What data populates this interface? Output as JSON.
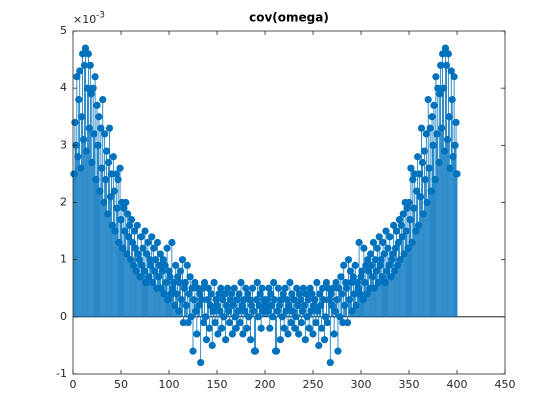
{
  "chart_data": {
    "type": "stem",
    "title": "cov(omega)",
    "color": "#0072bd",
    "y_exponent": {
      "base": "×10",
      "power": "-3"
    },
    "xlim": [
      0,
      450
    ],
    "xticks": [
      0,
      50,
      100,
      150,
      200,
      250,
      300,
      350,
      400,
      450
    ],
    "ylim": [
      -1,
      5
    ],
    "yticks": [
      -1,
      0,
      1,
      2,
      3,
      4,
      5
    ],
    "grid": false,
    "baseline": 0,
    "x": [
      1,
      2,
      3,
      4,
      5,
      6,
      7,
      8,
      9,
      10,
      11,
      12,
      13,
      14,
      15,
      16,
      17,
      18,
      19,
      20,
      21,
      22,
      23,
      24,
      25,
      26,
      27,
      28,
      29,
      30,
      31,
      32,
      33,
      34,
      35,
      36,
      37,
      38,
      39,
      40,
      41,
      42,
      43,
      44,
      45,
      46,
      47,
      48,
      49,
      50,
      51,
      52,
      53,
      54,
      55,
      56,
      57,
      58,
      59,
      60,
      61,
      62,
      63,
      64,
      65,
      66,
      67,
      68,
      69,
      70,
      71,
      72,
      73,
      74,
      75,
      76,
      77,
      78,
      79,
      80,
      81,
      82,
      83,
      84,
      85,
      86,
      87,
      88,
      89,
      90,
      91,
      92,
      93,
      94,
      95,
      96,
      97,
      98,
      99,
      100,
      101,
      102,
      103,
      104,
      105,
      106,
      107,
      108,
      109,
      110,
      111,
      112,
      113,
      114,
      115,
      116,
      117,
      118,
      119,
      120,
      121,
      122,
      123,
      124,
      125,
      126,
      127,
      128,
      129,
      130,
      131,
      132,
      133,
      134,
      135,
      136,
      137,
      138,
      139,
      140,
      141,
      142,
      143,
      144,
      145,
      146,
      147,
      148,
      149,
      150,
      151,
      152,
      153,
      154,
      155,
      156,
      157,
      158,
      159,
      160,
      161,
      162,
      163,
      164,
      165,
      166,
      167,
      168,
      169,
      170,
      171,
      172,
      173,
      174,
      175,
      176,
      177,
      178,
      179,
      180,
      181,
      182,
      183,
      184,
      185,
      186,
      187,
      188,
      189,
      190,
      191,
      192,
      193,
      194,
      195,
      196,
      197,
      198,
      199,
      200,
      201,
      202,
      203,
      204,
      205,
      206,
      207,
      208,
      209,
      210,
      211,
      212,
      213,
      214,
      215,
      216,
      217,
      218,
      219,
      220,
      221,
      222,
      223,
      224,
      225,
      226,
      227,
      228,
      229,
      230,
      231,
      232,
      233,
      234,
      235,
      236,
      237,
      238,
      239,
      240,
      241,
      242,
      243,
      244,
      245,
      246,
      247,
      248,
      249,
      250,
      251,
      252,
      253,
      254,
      255,
      256,
      257,
      258,
      259,
      260,
      261,
      262,
      263,
      264,
      265,
      266,
      267,
      268,
      269,
      270,
      271,
      272,
      273,
      274,
      275,
      276,
      277,
      278,
      279,
      280,
      281,
      282,
      283,
      284,
      285,
      286,
      287,
      288,
      289,
      290,
      291,
      292,
      293,
      294,
      295,
      296,
      297,
      298,
      299,
      300,
      301,
      302,
      303,
      304,
      305,
      306,
      307,
      308,
      309,
      310,
      311,
      312,
      313,
      314,
      315,
      316,
      317,
      318,
      319,
      320,
      321,
      322,
      323,
      324,
      325,
      326,
      327,
      328,
      329,
      330,
      331,
      332,
      333,
      334,
      335,
      336,
      337,
      338,
      339,
      340,
      341,
      342,
      343,
      344,
      345,
      346,
      347,
      348,
      349,
      350,
      351,
      352,
      353,
      354,
      355,
      356,
      357,
      358,
      359,
      360,
      361,
      362,
      363,
      364,
      365,
      366,
      367,
      368,
      369,
      370,
      371,
      372,
      373,
      374,
      375,
      376,
      377,
      378,
      379,
      380,
      381,
      382,
      383,
      384,
      385,
      386,
      387,
      388,
      389,
      390,
      391,
      392,
      393,
      394,
      395,
      396,
      397,
      398,
      399,
      400
    ],
    "values": [
      2.5,
      3.4,
      3.0,
      4.2,
      2.8,
      3.8,
      4.3,
      2.6,
      3.5,
      4.6,
      3.1,
      4.4,
      4.7,
      2.9,
      4.0,
      4.6,
      3.3,
      4.4,
      3.9,
      2.7,
      4.0,
      3.2,
      4.2,
      2.4,
      3.7,
      3.0,
      3.5,
      2.2,
      3.3,
      2.6,
      3.8,
      2.0,
      3.2,
      2.4,
      2.9,
      1.8,
      2.7,
      3.3,
      2.1,
      2.5,
      1.6,
      2.8,
      2.2,
      1.5,
      2.5,
      1.9,
      2.4,
      1.3,
      2.6,
      1.7,
      2.0,
      1.2,
      1.9,
      1.5,
      2.0,
      1.1,
      1.8,
      1.4,
      1.6,
      1.0,
      1.7,
      1.3,
      0.9,
      1.5,
      1.2,
      0.8,
      1.6,
      1.1,
      1.0,
      0.7,
      1.4,
      0.9,
      1.2,
      0.8,
      1.5,
      0.6,
      1.1,
      1.3,
      0.7,
      1.0,
      0.9,
      1.4,
      0.6,
      1.2,
      0.8,
      1.0,
      0.5,
      1.3,
      0.7,
      0.9,
      1.1,
      0.5,
      0.8,
      1.0,
      0.4,
      0.9,
      0.6,
      1.2,
      0.3,
      0.8,
      0.7,
      0.4,
      1.3,
      0.5,
      0.6,
      0.2,
      0.9,
      0.4,
      0.7,
      0.1,
      0.6,
      0.8,
      0.3,
      1.0,
      -0.1,
      0.5,
      0.6,
      0.2,
      0.9,
      -0.1,
      0.4,
      0.7,
      0.0,
      0.5,
      -0.6,
      0.3,
      0.6,
      0.1,
      -0.3,
      0.5,
      0.2,
      0.4,
      -0.8,
      0.3,
      0.5,
      -0.1,
      0.6,
      0.0,
      -0.4,
      0.3,
      0.5,
      -0.2,
      0.2,
      0.4,
      -0.5,
      0.1,
      0.6,
      -0.1,
      0.3,
      0.2,
      -0.3,
      0.4,
      0.1,
      0.5,
      -0.2,
      0.3,
      0.0,
      0.4,
      -0.4,
      0.2,
      0.5,
      0.1,
      -0.1,
      0.3,
      0.4,
      -0.3,
      0.2,
      0.5,
      0.0,
      -0.2,
      0.3,
      0.1,
      0.4,
      -0.1,
      0.6,
      0.2,
      -0.3,
      0.3,
      0.1,
      0.5,
      -0.2,
      0.4,
      0.0,
      0.3,
      -0.4,
      0.2,
      0.5,
      0.1,
      -0.6,
      -0.6,
      0.3,
      0.6,
      0.0,
      0.2,
      0.4,
      -0.2,
      0.5,
      0.1,
      0.3,
      0.2,
      0.2,
      0.3,
      0.1,
      0.5,
      -0.2,
      0.4,
      0.2,
      0.0,
      0.6,
      0.3,
      -0.6,
      -0.6,
      0.1,
      0.5,
      0.2,
      -0.4,
      0.3,
      0.0,
      0.4,
      -0.2,
      0.5,
      0.1,
      0.3,
      -0.3,
      0.2,
      0.6,
      -0.1,
      0.4,
      0.1,
      0.3,
      -0.2,
      0.0,
      0.5,
      0.2,
      -0.3,
      0.4,
      0.3,
      -0.1,
      0.1,
      0.5,
      0.2,
      -0.4,
      0.4,
      0.0,
      0.3,
      -0.2,
      0.5,
      0.1,
      0.4,
      -0.3,
      0.2,
      0.3,
      -0.1,
      0.6,
      0.1,
      -0.5,
      0.4,
      0.2,
      -0.2,
      0.5,
      0.3,
      -0.4,
      0.0,
      0.6,
      -0.1,
      0.5,
      0.3,
      -0.8,
      0.4,
      0.2,
      0.5,
      -0.3,
      0.1,
      0.6,
      0.3,
      -0.6,
      0.5,
      0.0,
      0.7,
      0.4,
      -0.1,
      0.9,
      0.2,
      0.6,
      0.5,
      -0.1,
      1.0,
      0.3,
      0.8,
      0.6,
      0.1,
      0.7,
      0.4,
      0.9,
      0.2,
      0.6,
      0.5,
      1.3,
      0.4,
      0.7,
      0.8,
      0.3,
      1.2,
      0.6,
      0.9,
      0.4,
      1.0,
      0.8,
      0.5,
      1.1,
      0.9,
      0.7,
      1.3,
      0.5,
      1.0,
      0.8,
      1.2,
      0.6,
      1.4,
      0.9,
      1.0,
      0.7,
      1.3,
      1.1,
      0.6,
      1.5,
      0.8,
      1.2,
      0.9,
      1.4,
      0.7,
      1.0,
      1.1,
      1.6,
      0.8,
      1.2,
      1.5,
      0.9,
      1.3,
      1.7,
      1.0,
      1.6,
      1.4,
      1.8,
      1.1,
      2.0,
      1.5,
      1.9,
      1.2,
      2.0,
      1.7,
      2.6,
      1.3,
      2.4,
      1.9,
      2.5,
      1.5,
      2.2,
      2.8,
      1.6,
      2.5,
      2.1,
      3.3,
      2.7,
      1.8,
      2.9,
      2.4,
      3.2,
      2.0,
      3.8,
      2.6,
      3.3,
      2.2,
      3.5,
      3.0,
      3.7,
      2.4,
      4.2,
      3.2,
      4.0,
      2.7,
      3.9,
      4.4,
      3.3,
      4.6,
      4.0,
      2.9,
      4.7,
      4.4,
      3.1,
      4.6,
      3.5,
      2.6,
      4.3,
      3.8,
      2.8,
      4.2,
      3.0,
      3.4,
      2.5
    ]
  }
}
